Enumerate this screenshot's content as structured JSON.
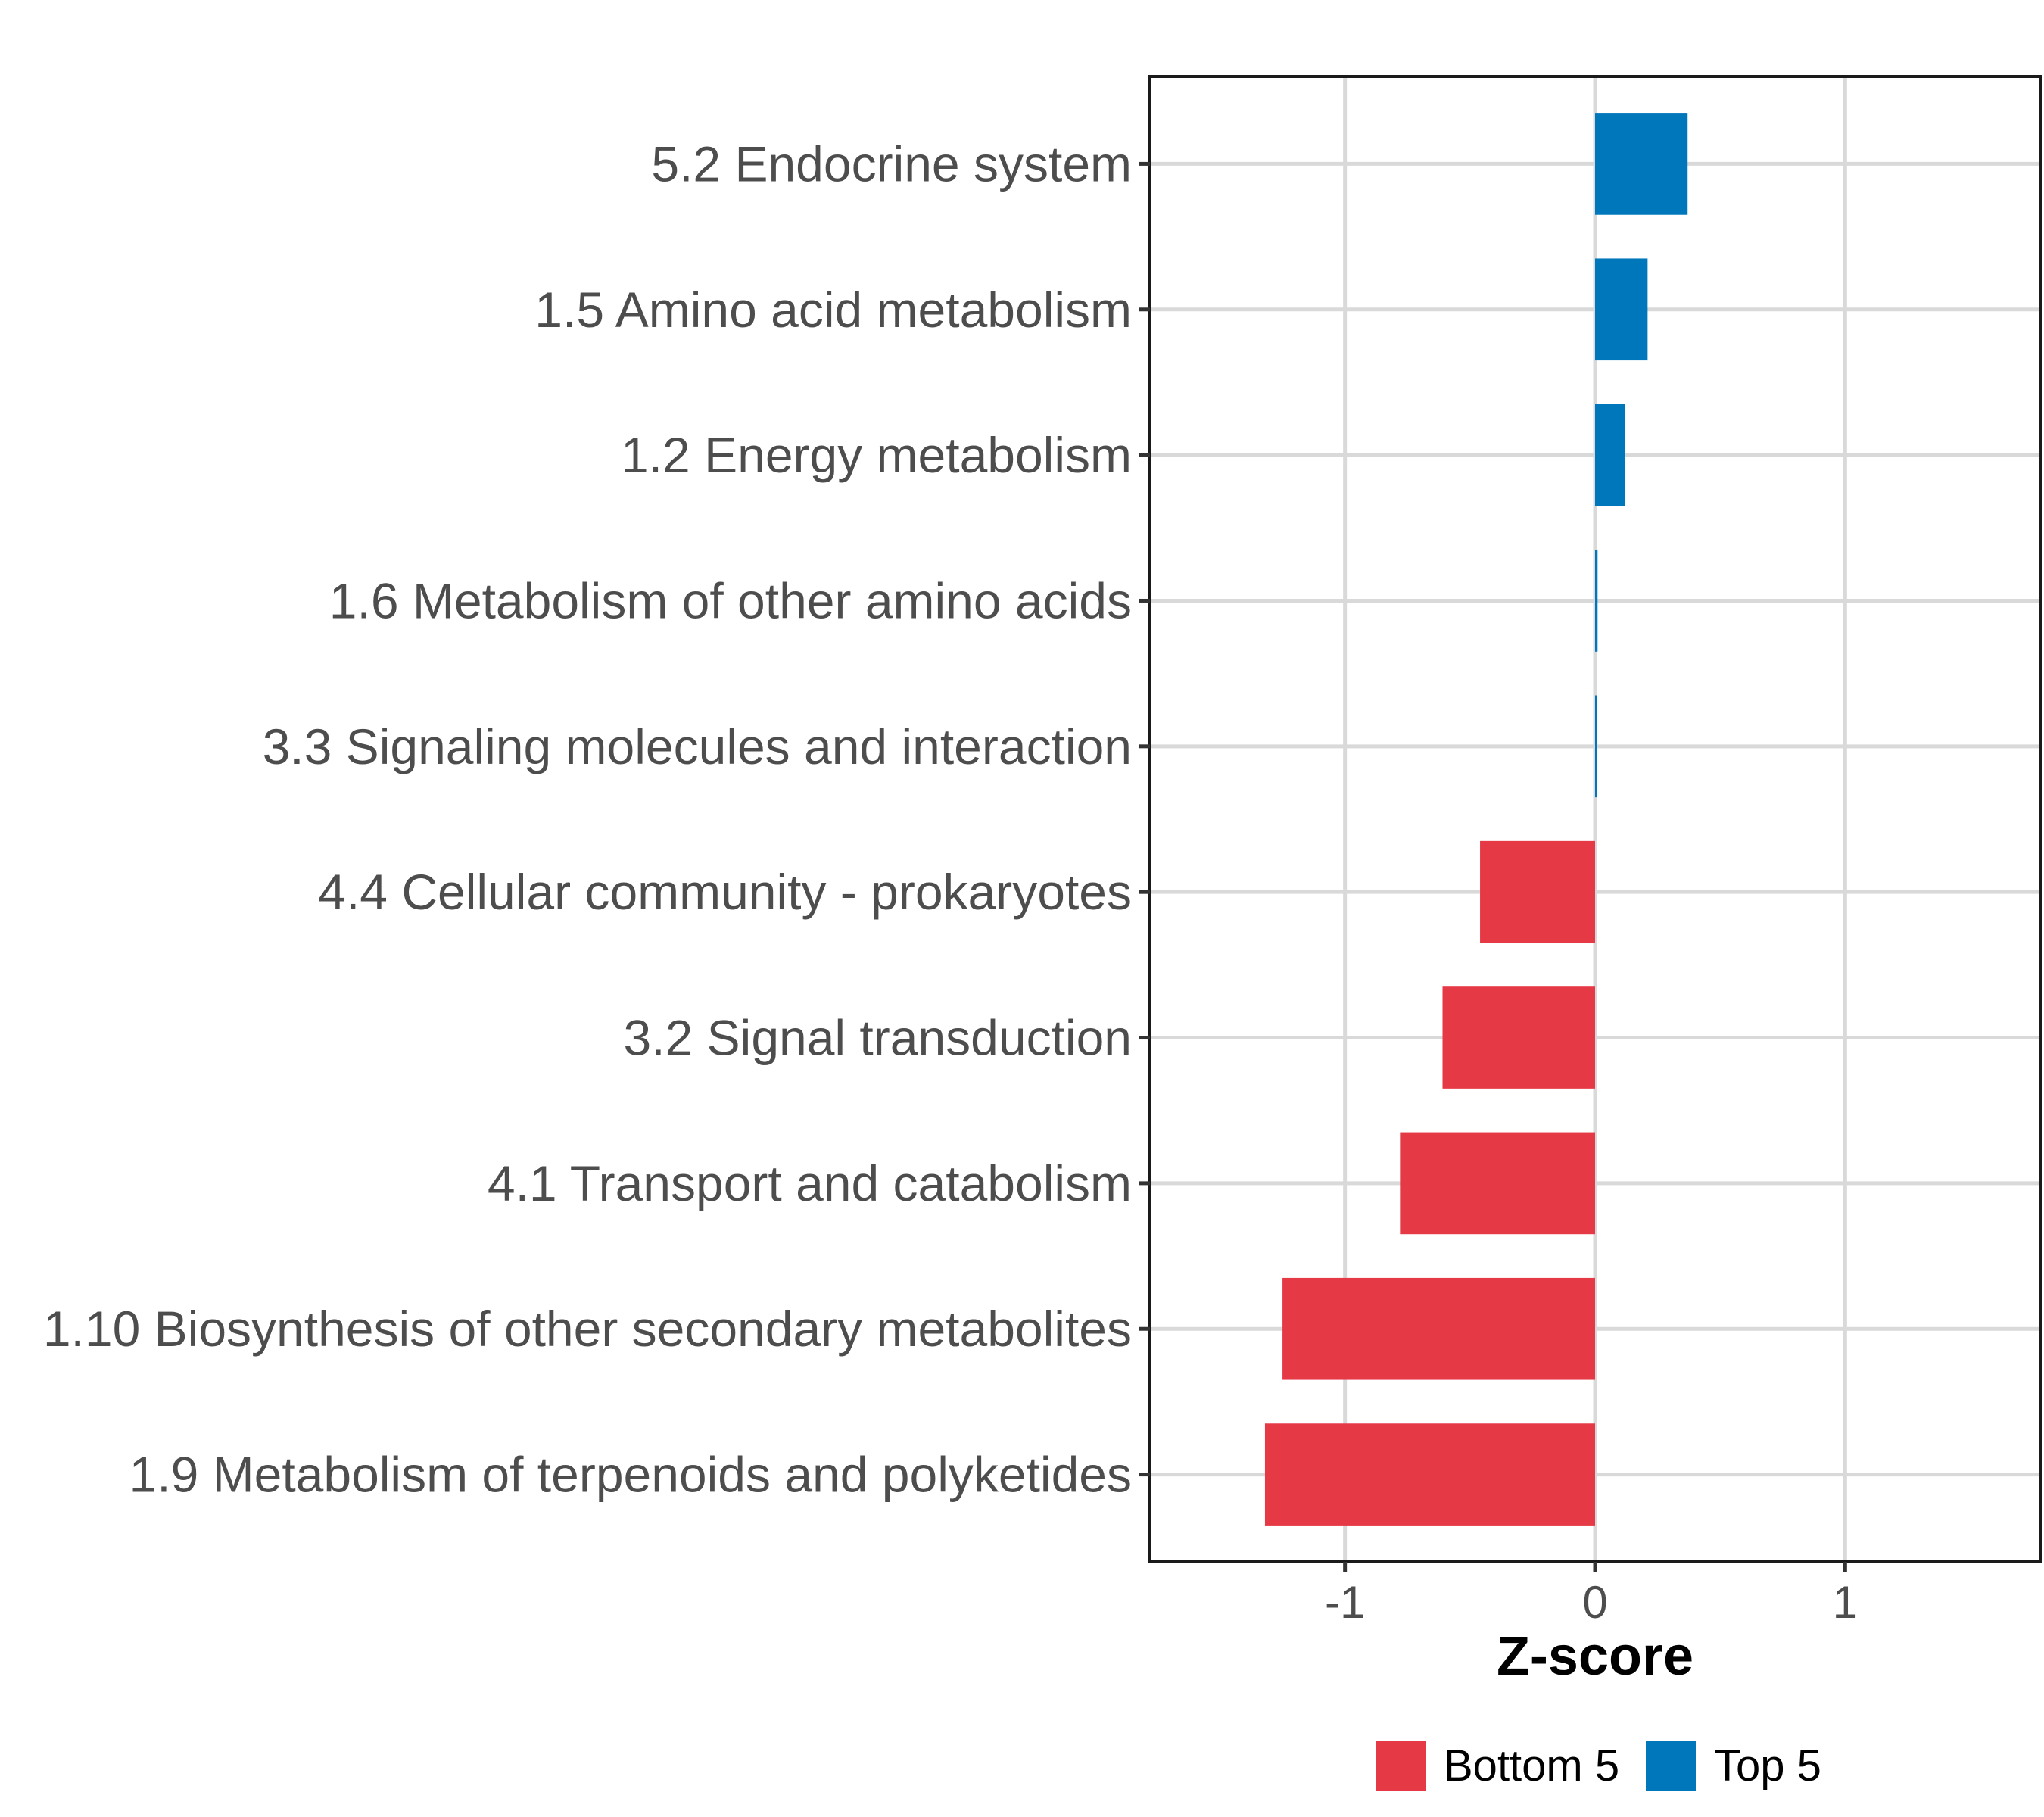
{
  "chart_data": {
    "type": "bar",
    "orientation": "horizontal",
    "categories": [
      "5.2 Endocrine system",
      "1.5 Amino acid metabolism",
      "1.2 Energy metabolism",
      "1.6 Metabolism of other amino acids",
      "3.3 Signaling molecules and interaction",
      "4.4 Cellular community - prokaryotes",
      "3.2 Signal transduction",
      "4.1 Transport and catabolism",
      "1.10 Biosynthesis of other secondary metabolites",
      "1.9 Metabolism of terpenoids and polyketides"
    ],
    "values": [
      0.37,
      0.21,
      0.12,
      0.01,
      0.005,
      -0.46,
      -0.61,
      -0.78,
      -1.25,
      -1.32
    ],
    "groups": [
      "Top 5",
      "Top 5",
      "Top 5",
      "Top 5",
      "Top 5",
      "Bottom 5",
      "Bottom 5",
      "Bottom 5",
      "Bottom 5",
      "Bottom 5"
    ],
    "xlabel": "Z-score",
    "ylabel": "",
    "xlim": [
      -1.78,
      1.78
    ],
    "xticks": [
      -1,
      0,
      1
    ],
    "xtick_labels": [
      "-1",
      "0",
      "1"
    ],
    "grid": true,
    "legend": {
      "position": "bottom",
      "entries": [
        {
          "label": "Bottom 5",
          "color": "#E63946"
        },
        {
          "label": "Top 5",
          "color": "#0077BB"
        }
      ]
    }
  }
}
